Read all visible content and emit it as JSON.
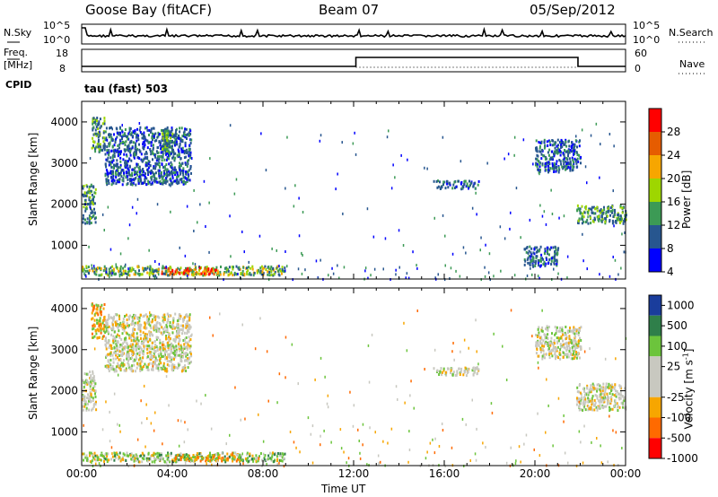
{
  "header": {
    "station": "Goose Bay (fitACF)",
    "beam": "Beam 07",
    "date": "05/Sep/2012"
  },
  "top_panels": {
    "nsky_label": "N.Sky",
    "nsky_ticks": [
      "10^5",
      "10^0"
    ],
    "nsearch_label": "N.Search",
    "nsearch_ticks": [
      "10^5",
      "10^0"
    ],
    "freq_label_1": "Freq.",
    "freq_label_2": "[MHz]",
    "freq_ticks": [
      "18",
      "8"
    ],
    "nave_label": "Nave",
    "nave_ticks": [
      "60",
      "0"
    ],
    "cpid_label": "CPID",
    "cpid_text": "tau (fast) 503"
  },
  "chart_data": [
    {
      "type": "heatmap",
      "title": "",
      "xlabel": "Time UT",
      "ylabel": "Slant Range [km]",
      "xticks": [
        "00:00",
        "04:00",
        "08:00",
        "12:00",
        "16:00",
        "20:00",
        "00:00"
      ],
      "xlim_hours": [
        0,
        24
      ],
      "yticks": [
        1000,
        2000,
        3000,
        4000
      ],
      "ylim": [
        180,
        4500
      ],
      "colorbar": {
        "label": "Power [dB]",
        "ticks": [
          "28",
          "24",
          "20",
          "16",
          "12",
          "8",
          "4"
        ],
        "colors": [
          "#ff0000",
          "#e65c00",
          "#f7a600",
          "#9ed600",
          "#3c9a55",
          "#27568f",
          "#0000ff"
        ]
      },
      "regions": [
        {
          "t0": 0.0,
          "t1": 9.0,
          "r0": 300,
          "r1": 520,
          "level": "high"
        },
        {
          "t0": 3.5,
          "t1": 6.0,
          "r0": 320,
          "r1": 480,
          "level": "max"
        },
        {
          "t0": 0.0,
          "t1": 0.6,
          "r0": 1550,
          "r1": 2500,
          "level": "mid"
        },
        {
          "t0": 0.4,
          "t1": 1.0,
          "r0": 3300,
          "r1": 4150,
          "level": "mid"
        },
        {
          "t0": 1.0,
          "t1": 4.8,
          "r0": 2500,
          "r1": 3900,
          "level": "low"
        },
        {
          "t0": 3.5,
          "t1": 4.0,
          "r0": 3300,
          "r1": 3850,
          "level": "mid"
        },
        {
          "t0": 21.8,
          "t1": 24.0,
          "r0": 1550,
          "r1": 2000,
          "level": "mid"
        },
        {
          "t0": 15.5,
          "t1": 17.5,
          "r0": 2400,
          "r1": 2600,
          "level": "low"
        },
        {
          "t0": 20.0,
          "t1": 22.0,
          "r0": 2800,
          "r1": 3600,
          "level": "low"
        },
        {
          "t0": 19.5,
          "t1": 21.0,
          "r0": 500,
          "r1": 1000,
          "level": "low"
        }
      ]
    },
    {
      "type": "heatmap",
      "title": "",
      "xlabel": "Time UT",
      "ylabel": "Slant Range [km]",
      "xticks": [
        "00:00",
        "04:00",
        "08:00",
        "12:00",
        "16:00",
        "20:00",
        "00:00"
      ],
      "xlim_hours": [
        0,
        24
      ],
      "yticks": [
        1000,
        2000,
        3000,
        4000
      ],
      "ylim": [
        180,
        4500
      ],
      "colorbar": {
        "label": "Velocity [m s^-1]",
        "ticks": [
          "1000",
          "500",
          "100",
          "25",
          "-25",
          "-100",
          "-500",
          "-1000"
        ],
        "colors": [
          "#1a3d9c",
          "#2f7f4a",
          "#6cc43c",
          "#c8c8c0",
          "#c8c8c0",
          "#f7a600",
          "#ff6a00",
          "#ff0000"
        ]
      },
      "regions": [
        {
          "t0": 0.0,
          "t1": 9.0,
          "r0": 300,
          "r1": 520,
          "level": "green"
        },
        {
          "t0": 4.0,
          "t1": 7.0,
          "r0": 320,
          "r1": 480,
          "level": "orange"
        },
        {
          "t0": 0.0,
          "t1": 0.6,
          "r0": 1550,
          "r1": 2500,
          "level": "grey"
        },
        {
          "t0": 0.4,
          "t1": 1.0,
          "r0": 3300,
          "r1": 4150,
          "level": "orange"
        },
        {
          "t0": 1.0,
          "t1": 4.8,
          "r0": 2500,
          "r1": 3900,
          "level": "grey"
        },
        {
          "t0": 21.8,
          "t1": 24.0,
          "r0": 1550,
          "r1": 2200,
          "level": "grey"
        },
        {
          "t0": 15.5,
          "t1": 17.5,
          "r0": 2400,
          "r1": 2600,
          "level": "grey"
        },
        {
          "t0": 20.0,
          "t1": 22.0,
          "r0": 2800,
          "r1": 3600,
          "level": "grey"
        }
      ]
    }
  ]
}
